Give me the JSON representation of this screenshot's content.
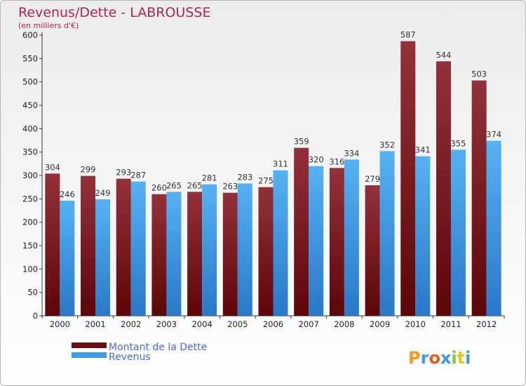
{
  "chart_data": {
    "type": "bar",
    "title": "Revenus/Dette - LABROUSSE",
    "subtitle": "(en milliers d'€)",
    "categories": [
      "2000",
      "2001",
      "2002",
      "2003",
      "2004",
      "2005",
      "2006",
      "2007",
      "2008",
      "2009",
      "2010",
      "2011",
      "2012"
    ],
    "series": [
      {
        "name": "Montant de la Dette",
        "values": [
          304,
          299,
          293,
          260,
          265,
          263,
          275,
          359,
          316,
          279,
          587,
          544,
          503
        ],
        "color": "#7a1a1e"
      },
      {
        "name": "Revenus",
        "values": [
          246,
          249,
          287,
          265,
          281,
          283,
          311,
          320,
          334,
          352,
          341,
          355,
          374
        ],
        "color": "#3f9be6"
      }
    ],
    "ylim": [
      0,
      600
    ],
    "yticks": [
      0,
      50,
      100,
      150,
      200,
      250,
      300,
      350,
      400,
      450,
      500,
      550,
      600
    ],
    "grid": false,
    "legend": "bottom-left"
  },
  "logo": {
    "text": "Proxiti"
  }
}
